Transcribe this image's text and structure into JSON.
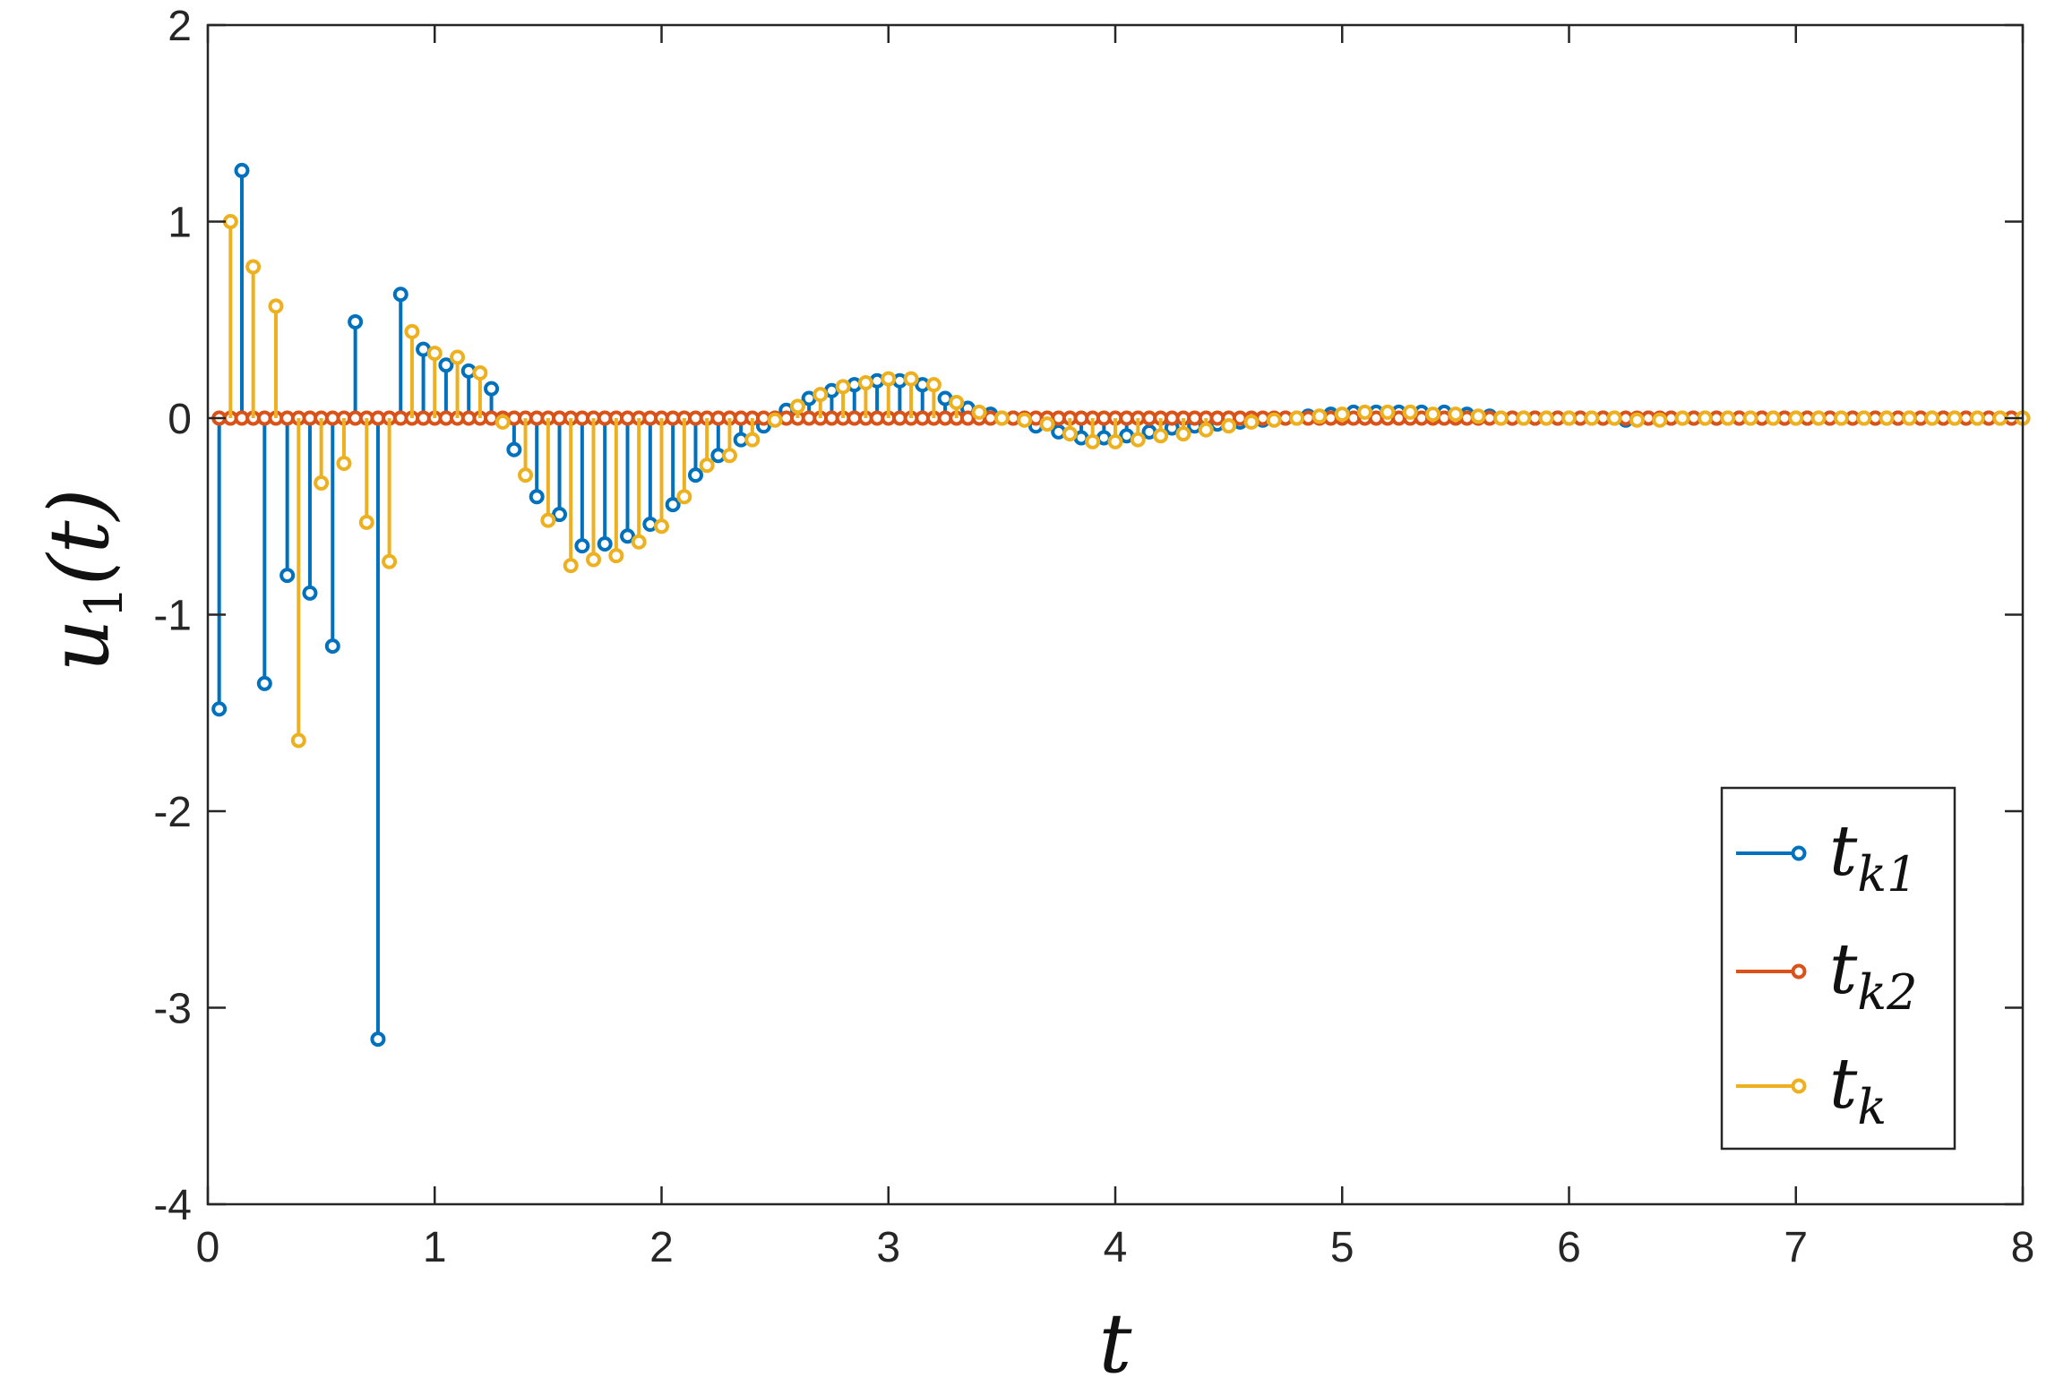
{
  "chart_data": {
    "type": "stem",
    "title": "",
    "xlabel": "t",
    "ylabel": "u_1(t)",
    "xlim": [
      0,
      8
    ],
    "ylim": [
      -4,
      2
    ],
    "xticks": [
      "0",
      "1",
      "2",
      "3",
      "4",
      "5",
      "6",
      "7",
      "8"
    ],
    "yticks": [
      "-4",
      "-3",
      "-2",
      "-1",
      "0",
      "1",
      "2"
    ],
    "grid": false,
    "legend_position": "bottom-right",
    "series": [
      {
        "name": "t_{k1}",
        "legend_base": "t",
        "legend_sub": "k1",
        "color": "#0072BD",
        "x": [
          0.05,
          0.15,
          0.25,
          0.35,
          0.45,
          0.55,
          0.65,
          0.75,
          0.85,
          0.95,
          1.05,
          1.15,
          1.25,
          1.35,
          1.45,
          1.55,
          1.65,
          1.75,
          1.85,
          1.95,
          2.05,
          2.15,
          2.25,
          2.35,
          2.45,
          2.55,
          2.65,
          2.75,
          2.85,
          2.95,
          3.05,
          3.15,
          3.25,
          3.35,
          3.45,
          3.55,
          3.65,
          3.75,
          3.85,
          3.95,
          4.05,
          4.15,
          4.25,
          4.35,
          4.45,
          4.55,
          4.65,
          4.75,
          4.85,
          4.95,
          5.05,
          5.15,
          5.25,
          5.35,
          5.45,
          5.55,
          5.65,
          5.75,
          5.85,
          5.95,
          6.05,
          6.15,
          6.25,
          6.35,
          6.45,
          6.55,
          6.65,
          6.75,
          6.85,
          6.95,
          7.05,
          7.15,
          7.25,
          7.35,
          7.45,
          7.55,
          7.65,
          7.75,
          7.85,
          7.95
        ],
        "y": [
          -1.48,
          1.26,
          -1.35,
          -0.8,
          -0.89,
          -1.16,
          0.49,
          -3.16,
          0.63,
          0.35,
          0.27,
          0.24,
          0.15,
          -0.16,
          -0.4,
          -0.49,
          -0.65,
          -0.64,
          -0.6,
          -0.54,
          -0.44,
          -0.29,
          -0.19,
          -0.11,
          -0.04,
          0.04,
          0.1,
          0.14,
          0.17,
          0.19,
          0.19,
          0.17,
          0.1,
          0.05,
          0.02,
          0.0,
          -0.04,
          -0.07,
          -0.1,
          -0.1,
          -0.09,
          -0.07,
          -0.05,
          -0.04,
          -0.03,
          -0.02,
          -0.01,
          0.0,
          0.01,
          0.02,
          0.03,
          0.03,
          0.03,
          0.03,
          0.03,
          0.02,
          0.01,
          0.0,
          0.0,
          0.0,
          0.0,
          0.0,
          -0.01,
          0.0,
          0.0,
          0.0,
          0.0,
          0.0,
          0.0,
          0.0,
          0.0,
          0.0,
          0.0,
          0.0,
          0.0,
          0.0,
          0.0,
          0.0,
          0.0,
          0.0
        ]
      },
      {
        "name": "t_{k2}",
        "legend_base": "t",
        "legend_sub": "k2",
        "color": "#D95319",
        "x": [
          0.05,
          0.1,
          0.15,
          0.2,
          0.25,
          0.3,
          0.35,
          0.4,
          0.45,
          0.5,
          0.55,
          0.6,
          0.65,
          0.7,
          0.75,
          0.8,
          0.85,
          0.9,
          0.95,
          1.0,
          1.05,
          1.1,
          1.15,
          1.2,
          1.25,
          1.3,
          1.35,
          1.4,
          1.45,
          1.5,
          1.55,
          1.6,
          1.65,
          1.7,
          1.75,
          1.8,
          1.85,
          1.9,
          1.95,
          2.0,
          2.05,
          2.1,
          2.15,
          2.2,
          2.25,
          2.3,
          2.35,
          2.4,
          2.45,
          2.5,
          2.55,
          2.6,
          2.65,
          2.7,
          2.75,
          2.8,
          2.85,
          2.9,
          2.95,
          3.0,
          3.05,
          3.1,
          3.15,
          3.2,
          3.25,
          3.3,
          3.35,
          3.4,
          3.45,
          3.5,
          3.55,
          3.6,
          3.65,
          3.7,
          3.75,
          3.8,
          3.85,
          3.9,
          3.95,
          4.0,
          4.05,
          4.1,
          4.15,
          4.2,
          4.25,
          4.3,
          4.35,
          4.4,
          4.45,
          4.5,
          4.55,
          4.6,
          4.65,
          4.7,
          4.75,
          4.8,
          4.85,
          4.9,
          4.95,
          5.0,
          5.05,
          5.1,
          5.15,
          5.2,
          5.25,
          5.3,
          5.35,
          5.4,
          5.45,
          5.5,
          5.55,
          5.6,
          5.65,
          5.7,
          5.75,
          5.8,
          5.85,
          5.9,
          5.95,
          6.0,
          6.05,
          6.1,
          6.15,
          6.2,
          6.25,
          6.3,
          6.35,
          6.4,
          6.45,
          6.5,
          6.55,
          6.6,
          6.65,
          6.7,
          6.75,
          6.8,
          6.85,
          6.9,
          6.95,
          7.0,
          7.05,
          7.1,
          7.15,
          7.2,
          7.25,
          7.3,
          7.35,
          7.4,
          7.45,
          7.5,
          7.55,
          7.6,
          7.65,
          7.7,
          7.75,
          7.8,
          7.85,
          7.9,
          7.95,
          8.0
        ],
        "y": [
          0,
          0,
          0,
          0,
          0,
          0,
          0,
          0,
          0,
          0,
          0,
          0,
          0,
          0,
          0,
          0,
          0,
          0,
          0,
          0,
          0,
          0,
          0,
          0,
          0,
          0,
          0,
          0,
          0,
          0,
          0,
          0,
          0,
          0,
          0,
          0,
          0,
          0,
          0,
          0,
          0,
          0,
          0,
          0,
          0,
          0,
          0,
          0,
          0,
          0,
          0,
          0,
          0,
          0,
          0,
          0,
          0,
          0,
          0,
          0,
          0,
          0,
          0,
          0,
          0,
          0,
          0,
          0,
          0,
          0,
          0,
          0,
          0,
          0,
          0,
          0,
          0,
          0,
          0,
          0,
          0,
          0,
          0,
          0,
          0,
          0,
          0,
          0,
          0,
          0,
          0,
          0,
          0,
          0,
          0,
          0,
          0,
          0,
          0,
          0,
          0,
          0,
          0,
          0,
          0,
          0,
          0,
          0,
          0,
          0,
          0,
          0,
          0,
          0,
          0,
          0,
          0,
          0,
          0,
          0,
          0,
          0,
          0,
          0,
          0,
          0,
          0,
          0,
          0,
          0,
          0,
          0,
          0,
          0,
          0,
          0,
          0,
          0,
          0,
          0,
          0,
          0,
          0,
          0,
          0,
          0,
          0,
          0,
          0,
          0,
          0,
          0,
          0,
          0,
          0,
          0,
          0,
          0,
          0,
          0
        ]
      },
      {
        "name": "t_k",
        "legend_base": "t",
        "legend_sub": "k",
        "color": "#EDB120",
        "x": [
          0.1,
          0.2,
          0.3,
          0.4,
          0.5,
          0.6,
          0.7,
          0.8,
          0.9,
          1.0,
          1.1,
          1.2,
          1.3,
          1.4,
          1.5,
          1.6,
          1.7,
          1.8,
          1.9,
          2.0,
          2.1,
          2.2,
          2.3,
          2.4,
          2.5,
          2.6,
          2.7,
          2.8,
          2.9,
          3.0,
          3.1,
          3.2,
          3.3,
          3.4,
          3.5,
          3.6,
          3.7,
          3.8,
          3.9,
          4.0,
          4.1,
          4.2,
          4.3,
          4.4,
          4.5,
          4.6,
          4.7,
          4.8,
          4.9,
          5.0,
          5.1,
          5.2,
          5.3,
          5.4,
          5.5,
          5.6,
          5.7,
          5.8,
          5.9,
          6.0,
          6.1,
          6.2,
          6.3,
          6.4,
          6.5,
          6.6,
          6.7,
          6.8,
          6.9,
          7.0,
          7.1,
          7.2,
          7.3,
          7.4,
          7.5,
          7.6,
          7.7,
          7.8,
          7.9,
          8.0
        ],
        "y": [
          1.0,
          0.77,
          0.57,
          -1.64,
          -0.33,
          -0.23,
          -0.53,
          -0.73,
          0.44,
          0.33,
          0.31,
          0.23,
          -0.02,
          -0.29,
          -0.52,
          -0.75,
          -0.72,
          -0.7,
          -0.63,
          -0.55,
          -0.4,
          -0.24,
          -0.19,
          -0.11,
          -0.01,
          0.06,
          0.12,
          0.16,
          0.18,
          0.2,
          0.2,
          0.17,
          0.08,
          0.03,
          0.0,
          -0.01,
          -0.03,
          -0.08,
          -0.12,
          -0.12,
          -0.11,
          -0.09,
          -0.08,
          -0.06,
          -0.04,
          -0.02,
          -0.01,
          0.0,
          0.01,
          0.02,
          0.03,
          0.03,
          0.03,
          0.02,
          0.02,
          0.01,
          0.0,
          0.0,
          0.0,
          0.0,
          0.0,
          0.0,
          -0.01,
          -0.01,
          0.0,
          0.0,
          0.0,
          0.0,
          0.0,
          0.0,
          0.0,
          0.0,
          0.0,
          0.0,
          0.0,
          0.0,
          0.0,
          0.0,
          0.0,
          0.0
        ]
      }
    ]
  },
  "axes": {
    "x_title": "t",
    "y_title_base": "u",
    "y_title_sub": "1",
    "y_title_arg": "(t)"
  }
}
